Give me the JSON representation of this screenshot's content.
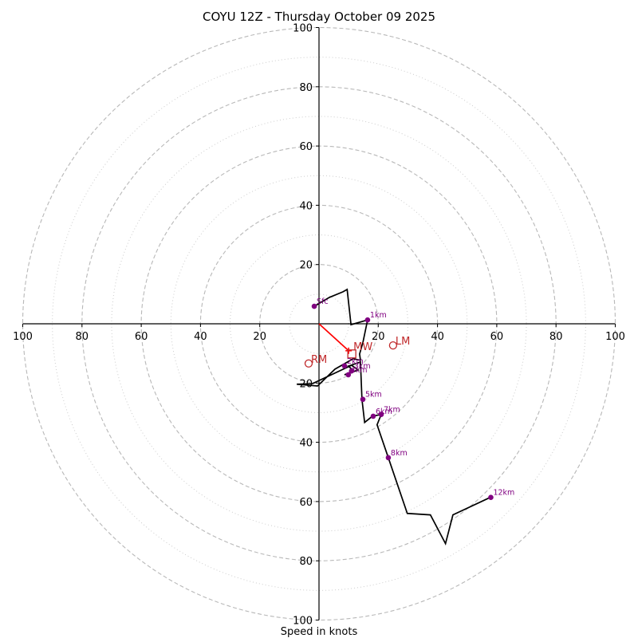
{
  "chart_data": {
    "type": "line",
    "title": "COYU 12Z - Thursday October 09 2025",
    "xlabel": "Speed in knots",
    "ylabel": "",
    "xlim": [
      -100,
      100
    ],
    "ylim": [
      -100,
      100
    ],
    "grid": "polar rings",
    "ring_dashed": [
      20,
      40,
      60,
      80,
      100
    ],
    "ring_dotted": [
      10,
      30,
      50,
      70,
      90
    ],
    "x_ticks": [
      -100,
      -80,
      -60,
      -40,
      -20,
      20,
      40,
      60,
      80,
      100
    ],
    "x_tick_labels": [
      "100",
      "80",
      "60",
      "40",
      "20",
      "20",
      "40",
      "60",
      "80",
      "100"
    ],
    "y_ticks": [
      100,
      80,
      60,
      40,
      20,
      -20,
      -40,
      -60,
      -80,
      -100
    ],
    "y_tick_labels": [
      "100",
      "80",
      "60",
      "40",
      "20",
      "20",
      "40",
      "60",
      "80",
      "100"
    ],
    "hodograph": {
      "name": "wind profile",
      "color": "#000000",
      "u": [
        -1.6,
        3.5,
        8.1,
        9.5,
        10.8,
        16.4,
        14.8,
        13.7,
        14.0,
        11.5,
        5.4,
        -0.5,
        -7.5,
        -2.2,
        11.0,
        13.2,
        8.6,
        11.8,
        9.9,
        14.0,
        14.5,
        15.4,
        18.0,
        21.0,
        19.6,
        23.4,
        29.8,
        37.6,
        42.7,
        45.2,
        57.8
      ],
      "v": [
        5.9,
        8.9,
        10.8,
        11.6,
        -0.3,
        1.3,
        -6.4,
        -10.2,
        -12.3,
        -11.8,
        -15.3,
        -21.0,
        -20.4,
        -20.2,
        -14.0,
        -15.6,
        -17.2,
        -15.9,
        -14.3,
        -12.9,
        -25.5,
        -33.3,
        -31.2,
        -30.6,
        -34.1,
        -45.2,
        -64.0,
        -64.5,
        -74.2,
        -64.5,
        -58.6
      ]
    },
    "height_markers": [
      {
        "label": "Sfc",
        "u": -1.6,
        "v": 5.9
      },
      {
        "label": "1km",
        "u": 16.4,
        "v": 1.3
      },
      {
        "label": "2km",
        "u": 8.6,
        "v": -14.2
      },
      {
        "label": "3km",
        "u": 11.0,
        "v": -15.9
      },
      {
        "label": "4km",
        "u": 9.9,
        "v": -17.2
      },
      {
        "label": "5km",
        "u": 14.8,
        "v": -25.5
      },
      {
        "label": "6km",
        "u": 18.3,
        "v": -31.2
      },
      {
        "label": "7km",
        "u": 21.0,
        "v": -30.6
      },
      {
        "label": "8km",
        "u": 23.4,
        "v": -45.2
      },
      {
        "label": "12km",
        "u": 58.0,
        "v": -58.6
      }
    ],
    "motion_markers": [
      {
        "label": "LM",
        "u": 25.0,
        "v": -7.3,
        "shape": "circle"
      },
      {
        "label": "RM",
        "u": -3.5,
        "v": -13.4,
        "shape": "circle"
      },
      {
        "label": "MW",
        "u": 10.0,
        "v": -9.1,
        "shape": "square"
      }
    ],
    "mean_wind_vector": {
      "u": 10.0,
      "v": -9.1,
      "color": "#ff0000"
    },
    "colors": {
      "hodograph": "#000000",
      "height_points": "#800080",
      "motion": "#c0282a",
      "vector": "#ff0000",
      "grid": "#b0b0b0"
    }
  }
}
